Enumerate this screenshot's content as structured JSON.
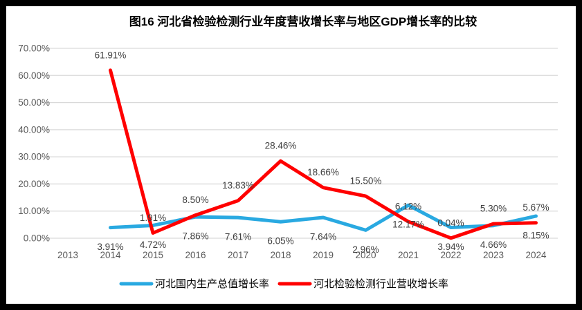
{
  "title": "图16 河北省检验检测行业年度营收增长率与地区GDP增长率的比较",
  "frame_color": "#000000",
  "grid_color": "#d9d9d9",
  "axis_text_color": "#595959",
  "label_text_color": "#3f3f3f",
  "chart_data": {
    "type": "line",
    "categories": [
      "2013",
      "2014",
      "2015",
      "2016",
      "2017",
      "2018",
      "2019",
      "2020",
      "2021",
      "2022",
      "2023",
      "2024"
    ],
    "series": [
      {
        "name": "河北国内生产总值增长率",
        "color": "#29a9e1",
        "label_side": "below",
        "values": [
          null,
          3.91,
          4.72,
          7.86,
          7.61,
          6.05,
          7.64,
          2.96,
          12.17,
          3.94,
          4.66,
          8.15
        ]
      },
      {
        "name": "河北检验检测行业营收增长率",
        "color": "#ff0000",
        "label_side": "above",
        "values": [
          null,
          61.91,
          1.91,
          8.5,
          13.83,
          28.46,
          18.66,
          15.5,
          6.12,
          0.04,
          5.3,
          5.67
        ]
      }
    ],
    "y_ticks": [
      "0.00%",
      "10.00%",
      "20.00%",
      "30.00%",
      "40.00%",
      "50.00%",
      "60.00%",
      "70.00%"
    ],
    "ylim": [
      0,
      70
    ],
    "grid": true,
    "legend_position": "bottom",
    "label_format": "percent_2dp"
  }
}
